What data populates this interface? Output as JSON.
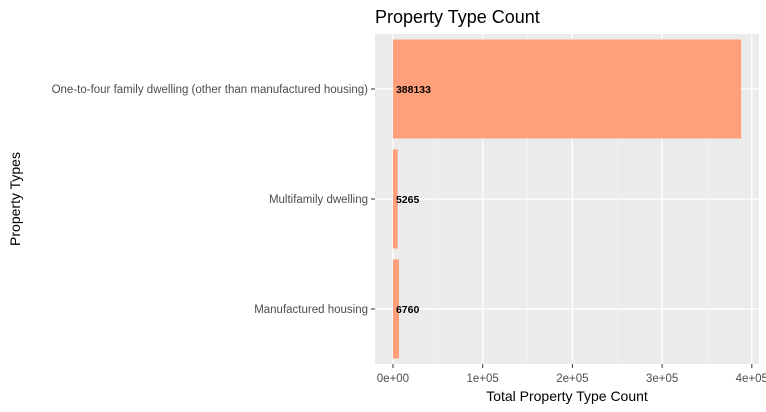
{
  "chart_data": {
    "type": "bar",
    "orientation": "horizontal",
    "title": "Property Type Count",
    "xlabel": "Total Property Type Count",
    "ylabel": "Property Types",
    "categories": [
      "One-to-four family dwelling (other than manufactured housing)",
      "Multifamily dwelling",
      "Manufactured housing"
    ],
    "values": [
      388133,
      5265,
      6760
    ],
    "data_labels": [
      "388133",
      "5265",
      "6760"
    ],
    "xlim": [
      -20000,
      408000
    ],
    "x_ticks": [
      0,
      100000,
      200000,
      300000,
      400000
    ],
    "x_tick_labels": [
      "0e+00",
      "1e+05",
      "2e+05",
      "3e+05",
      "4e+05"
    ],
    "grid": true,
    "legend": "none",
    "colors": {
      "bar_fill": "#ffa07a",
      "panel_background": "#ebebeb",
      "grid_major": "#ffffff",
      "grid_minor": "#f4f4f4"
    }
  }
}
